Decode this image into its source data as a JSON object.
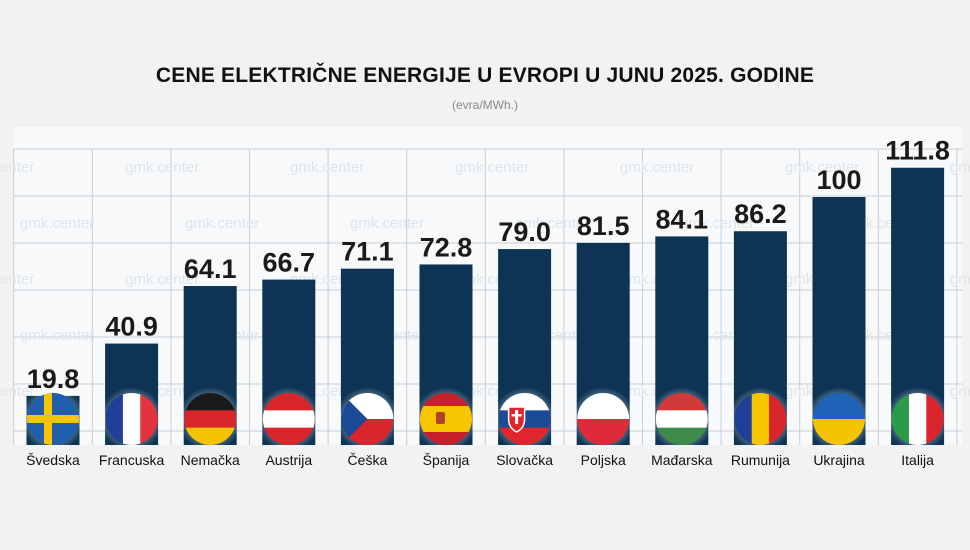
{
  "chart_data": {
    "type": "bar",
    "title": "CENE ELEKTRIČNE ENERGIJE U EVROPI U JUNU 2025. GODINE",
    "subtitle": "(evra/MWh.)",
    "categories": [
      "Švedska",
      "Francuska",
      "Nemačka",
      "Austrija",
      "Češka",
      "Španija",
      "Slovačka",
      "Poljska",
      "Mađarska",
      "Rumunija",
      "Ukrajina",
      "Italija"
    ],
    "values": [
      19.8,
      40.9,
      64.1,
      66.7,
      71.1,
      72.8,
      79.0,
      81.5,
      84.1,
      86.2,
      100,
      111.8
    ],
    "value_labels": [
      "19.8",
      "40.9",
      "64.1",
      "66.7",
      "71.1",
      "72.8",
      "79.0",
      "81.5",
      "84.1",
      "86.2",
      "100",
      "111.8"
    ],
    "flags": [
      "sweden-flag-icon",
      "france-flag-icon",
      "germany-flag-icon",
      "austria-flag-icon",
      "czechia-flag-icon",
      "spain-flag-icon",
      "slovakia-flag-icon",
      "poland-flag-icon",
      "hungary-flag-icon",
      "romania-flag-icon",
      "ukraine-flag-icon",
      "italy-flag-icon"
    ],
    "bar_color": "#0d3454",
    "watermark": "gmk.center",
    "grid": true
  }
}
